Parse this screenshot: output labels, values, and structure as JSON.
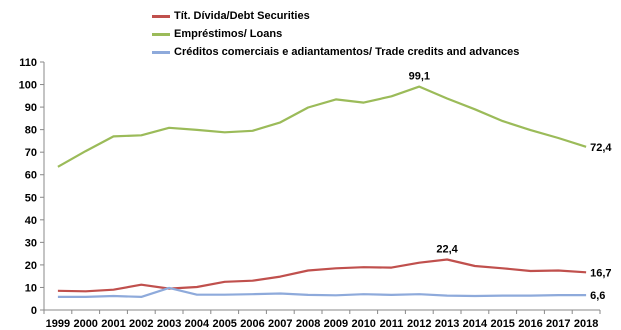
{
  "chart_data": {
    "type": "line",
    "title": "",
    "xlabel": "",
    "ylabel": "",
    "ylim": [
      0,
      110
    ],
    "yticks": [
      0,
      10,
      20,
      30,
      40,
      50,
      60,
      70,
      80,
      90,
      100,
      110
    ],
    "grid": false,
    "legend_position": "top-left",
    "x": [
      "1999",
      "2000",
      "2001",
      "2002",
      "2003",
      "2004",
      "2005",
      "2006",
      "2007",
      "2008",
      "2009",
      "2010",
      "2011",
      "2012",
      "2013",
      "2014",
      "2015",
      "2016",
      "2017",
      "2018"
    ],
    "series": [
      {
        "name": "Tít. Dívida/Debt Securities",
        "color": "#c0504d",
        "values": [
          8.5,
          8.3,
          9.0,
          11.2,
          9.5,
          10.2,
          12.5,
          13.0,
          14.8,
          17.5,
          18.5,
          19.0,
          18.8,
          21.0,
          22.4,
          19.5,
          18.5,
          17.3,
          17.5,
          16.7
        ]
      },
      {
        "name": "Empréstimos/ Loans",
        "color": "#9bbb59",
        "values": [
          63.5,
          70.5,
          77.0,
          77.5,
          80.8,
          79.9,
          78.8,
          79.5,
          83.2,
          89.8,
          93.4,
          92.0,
          94.8,
          99.1,
          93.8,
          89.0,
          83.8,
          79.8,
          76.3,
          72.4
        ]
      },
      {
        "name": "Créditos comerciais e adiantamentos/ Trade credits and advances",
        "color": "#8eaadb",
        "values": [
          5.8,
          5.8,
          6.2,
          5.8,
          9.8,
          6.8,
          6.8,
          7.0,
          7.3,
          6.7,
          6.5,
          7.0,
          6.7,
          7.0,
          6.4,
          6.2,
          6.4,
          6.4,
          6.6,
          6.6
        ]
      }
    ],
    "annotations": [
      {
        "series": 1,
        "index": 13,
        "text": "99,1"
      },
      {
        "series": 1,
        "index": 19,
        "text": "72,4"
      },
      {
        "series": 0,
        "index": 14,
        "text": "22,4"
      },
      {
        "series": 0,
        "index": 19,
        "text": "16,7"
      },
      {
        "series": 2,
        "index": 19,
        "text": "6,6"
      }
    ]
  }
}
